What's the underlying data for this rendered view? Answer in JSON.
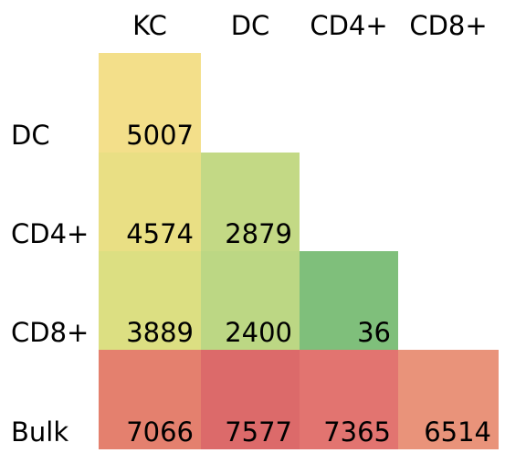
{
  "chart_data": {
    "type": "heatmap",
    "x_categories": [
      "KC",
      "DC",
      "CD4+",
      "CD8+"
    ],
    "y_categories": [
      "DC",
      "CD4+",
      "CD8+",
      "Bulk"
    ],
    "values": [
      [
        5007,
        null,
        null,
        null
      ],
      [
        4574,
        2879,
        null,
        null
      ],
      [
        3889,
        2400,
        36,
        null
      ],
      [
        7066,
        7577,
        7365,
        6514
      ]
    ],
    "colors": [
      [
        "#f3df8a",
        null,
        null,
        null
      ],
      [
        "#e9df84",
        "#c3d985",
        null,
        null
      ],
      [
        "#dcdf82",
        "#bcd784",
        "#7fbf7b",
        null
      ],
      [
        "#e4806e",
        "#dc6a6a",
        "#e27470",
        "#e9937a"
      ]
    ]
  }
}
